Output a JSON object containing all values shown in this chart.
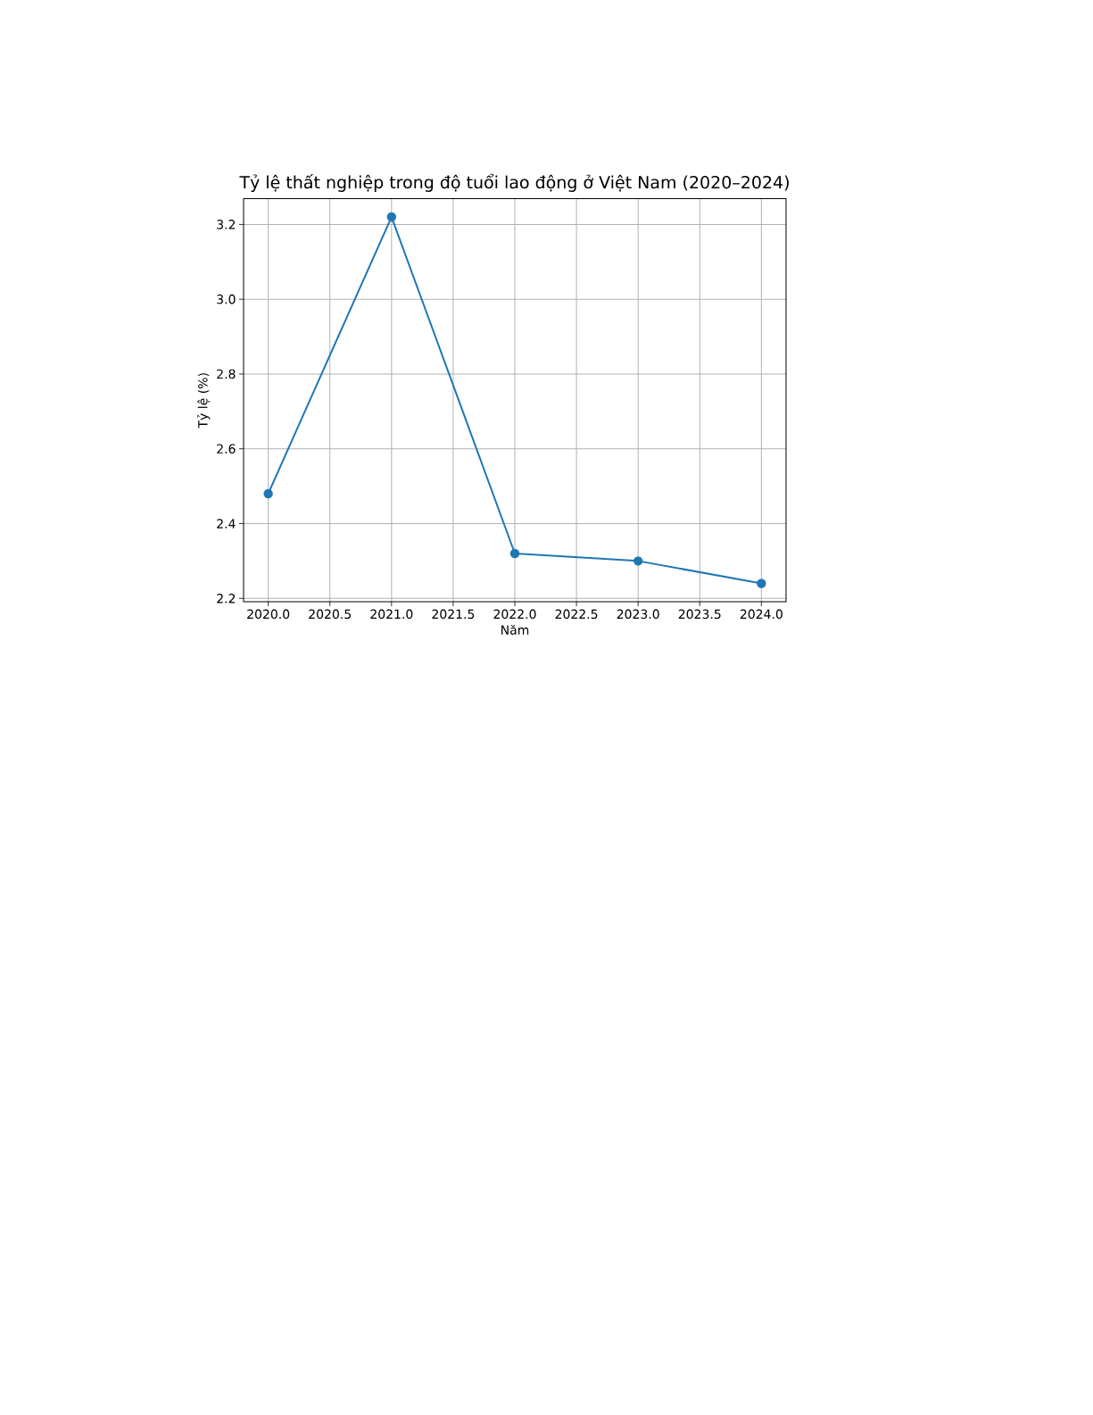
{
  "chart_data": {
    "type": "line",
    "title": "Tỷ lệ thất nghiệp trong độ tuổi lao động ở Việt Nam (2020–2024)",
    "xlabel": "Năm",
    "ylabel": "Tỷ lệ (%)",
    "x": [
      2020,
      2021,
      2022,
      2023,
      2024
    ],
    "series": [
      {
        "color": "#1f77b4",
        "values": [
          2.48,
          3.22,
          2.32,
          2.3,
          2.24
        ]
      }
    ],
    "xlim": [
      2019.8,
      2024.2
    ],
    "ylim": [
      2.191,
      3.269
    ],
    "xticks": [
      {
        "value": 2020,
        "label": "2020.0"
      },
      {
        "value": 2020.5,
        "label": "2020.5"
      },
      {
        "value": 2021,
        "label": "2021.0"
      },
      {
        "value": 2021.5,
        "label": "2021.5"
      },
      {
        "value": 2022,
        "label": "2022.0"
      },
      {
        "value": 2022.5,
        "label": "2022.5"
      },
      {
        "value": 2023,
        "label": "2023.0"
      },
      {
        "value": 2023.5,
        "label": "2023.5"
      },
      {
        "value": 2024,
        "label": "2024.0"
      }
    ],
    "yticks": [
      2.2,
      2.4,
      2.6,
      2.8,
      {
        "value": 3,
        "label": "3.0"
      },
      3.2
    ],
    "grid": true,
    "marker": "circle",
    "line_style": "solid"
  }
}
